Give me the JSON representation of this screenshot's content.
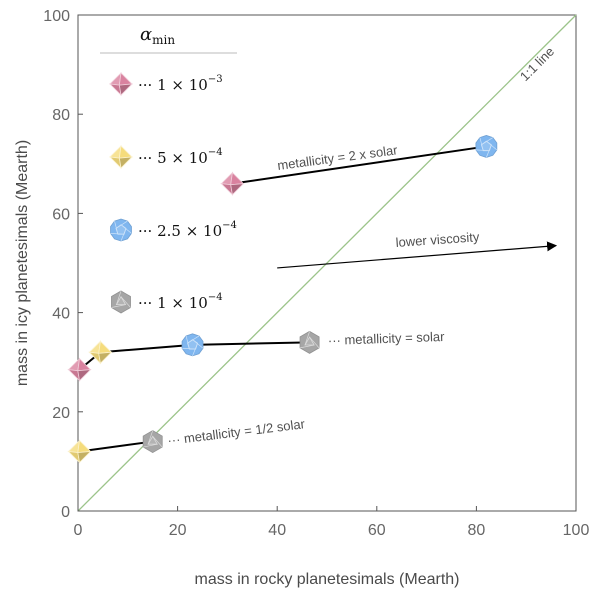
{
  "chart_data": {
    "type": "scatter",
    "title": "",
    "xlabel": "mass in rocky planetesimals (Mearth)",
    "ylabel": "mass in icy planetesimals (Mearth)",
    "xlim": [
      0,
      100
    ],
    "ylim": [
      0,
      100
    ],
    "xticks": [
      "0",
      "20",
      "40",
      "60",
      "80",
      "100"
    ],
    "yticks": [
      "0",
      "20",
      "40",
      "60",
      "80",
      "100"
    ],
    "grid": false,
    "legend_position": "top-left",
    "legend": {
      "title": "α",
      "title_sub": "min",
      "entries": [
        {
          "marker": "octahedron",
          "color": "#d9829f",
          "prefix": "··· 1 × 10",
          "exponent": "−3"
        },
        {
          "marker": "octahedron",
          "color": "#f5dc7c",
          "prefix": "··· 5 × 10",
          "exponent": "−4"
        },
        {
          "marker": "dodecahedron",
          "color": "#7fb6ef",
          "prefix": "··· 2.5 × 10",
          "exponent": "−4"
        },
        {
          "marker": "icosahedron",
          "color": "#a6a6a6",
          "prefix": "··· 1 × 10",
          "exponent": "−4"
        }
      ]
    },
    "reference_line": {
      "label": "1:1 line",
      "color": "#9cc48a",
      "from": [
        0,
        0
      ],
      "to": [
        100,
        100
      ]
    },
    "series": [
      {
        "label": "metallicity = 2 x solar",
        "points": [
          {
            "x": 31,
            "y": 66,
            "marker": "octahedron",
            "color": "#d9829f"
          },
          {
            "x": 82,
            "y": 73.5,
            "marker": "dodecahedron",
            "color": "#7fb6ef"
          }
        ]
      },
      {
        "label": "··· metallicity = solar",
        "points": [
          {
            "x": 0.3,
            "y": 28.5,
            "marker": "octahedron",
            "color": "#d9829f"
          },
          {
            "x": 4.5,
            "y": 32,
            "marker": "octahedron",
            "color": "#f5dc7c"
          },
          {
            "x": 23,
            "y": 33.5,
            "marker": "dodecahedron",
            "color": "#7fb6ef"
          },
          {
            "x": 46.5,
            "y": 34,
            "marker": "icosahedron",
            "color": "#a6a6a6"
          }
        ]
      },
      {
        "label": "··· metallicity = 1/2 solar",
        "points": [
          {
            "x": 0.3,
            "y": 12,
            "marker": "octahedron",
            "color": "#f5dc7c"
          },
          {
            "x": 15,
            "y": 14,
            "marker": "icosahedron",
            "color": "#a6a6a6"
          }
        ]
      }
    ],
    "annotations": [
      {
        "text": "lower viscosity",
        "arrow_from": [
          40,
          49
        ],
        "arrow_to": [
          96,
          53.5
        ]
      }
    ]
  }
}
